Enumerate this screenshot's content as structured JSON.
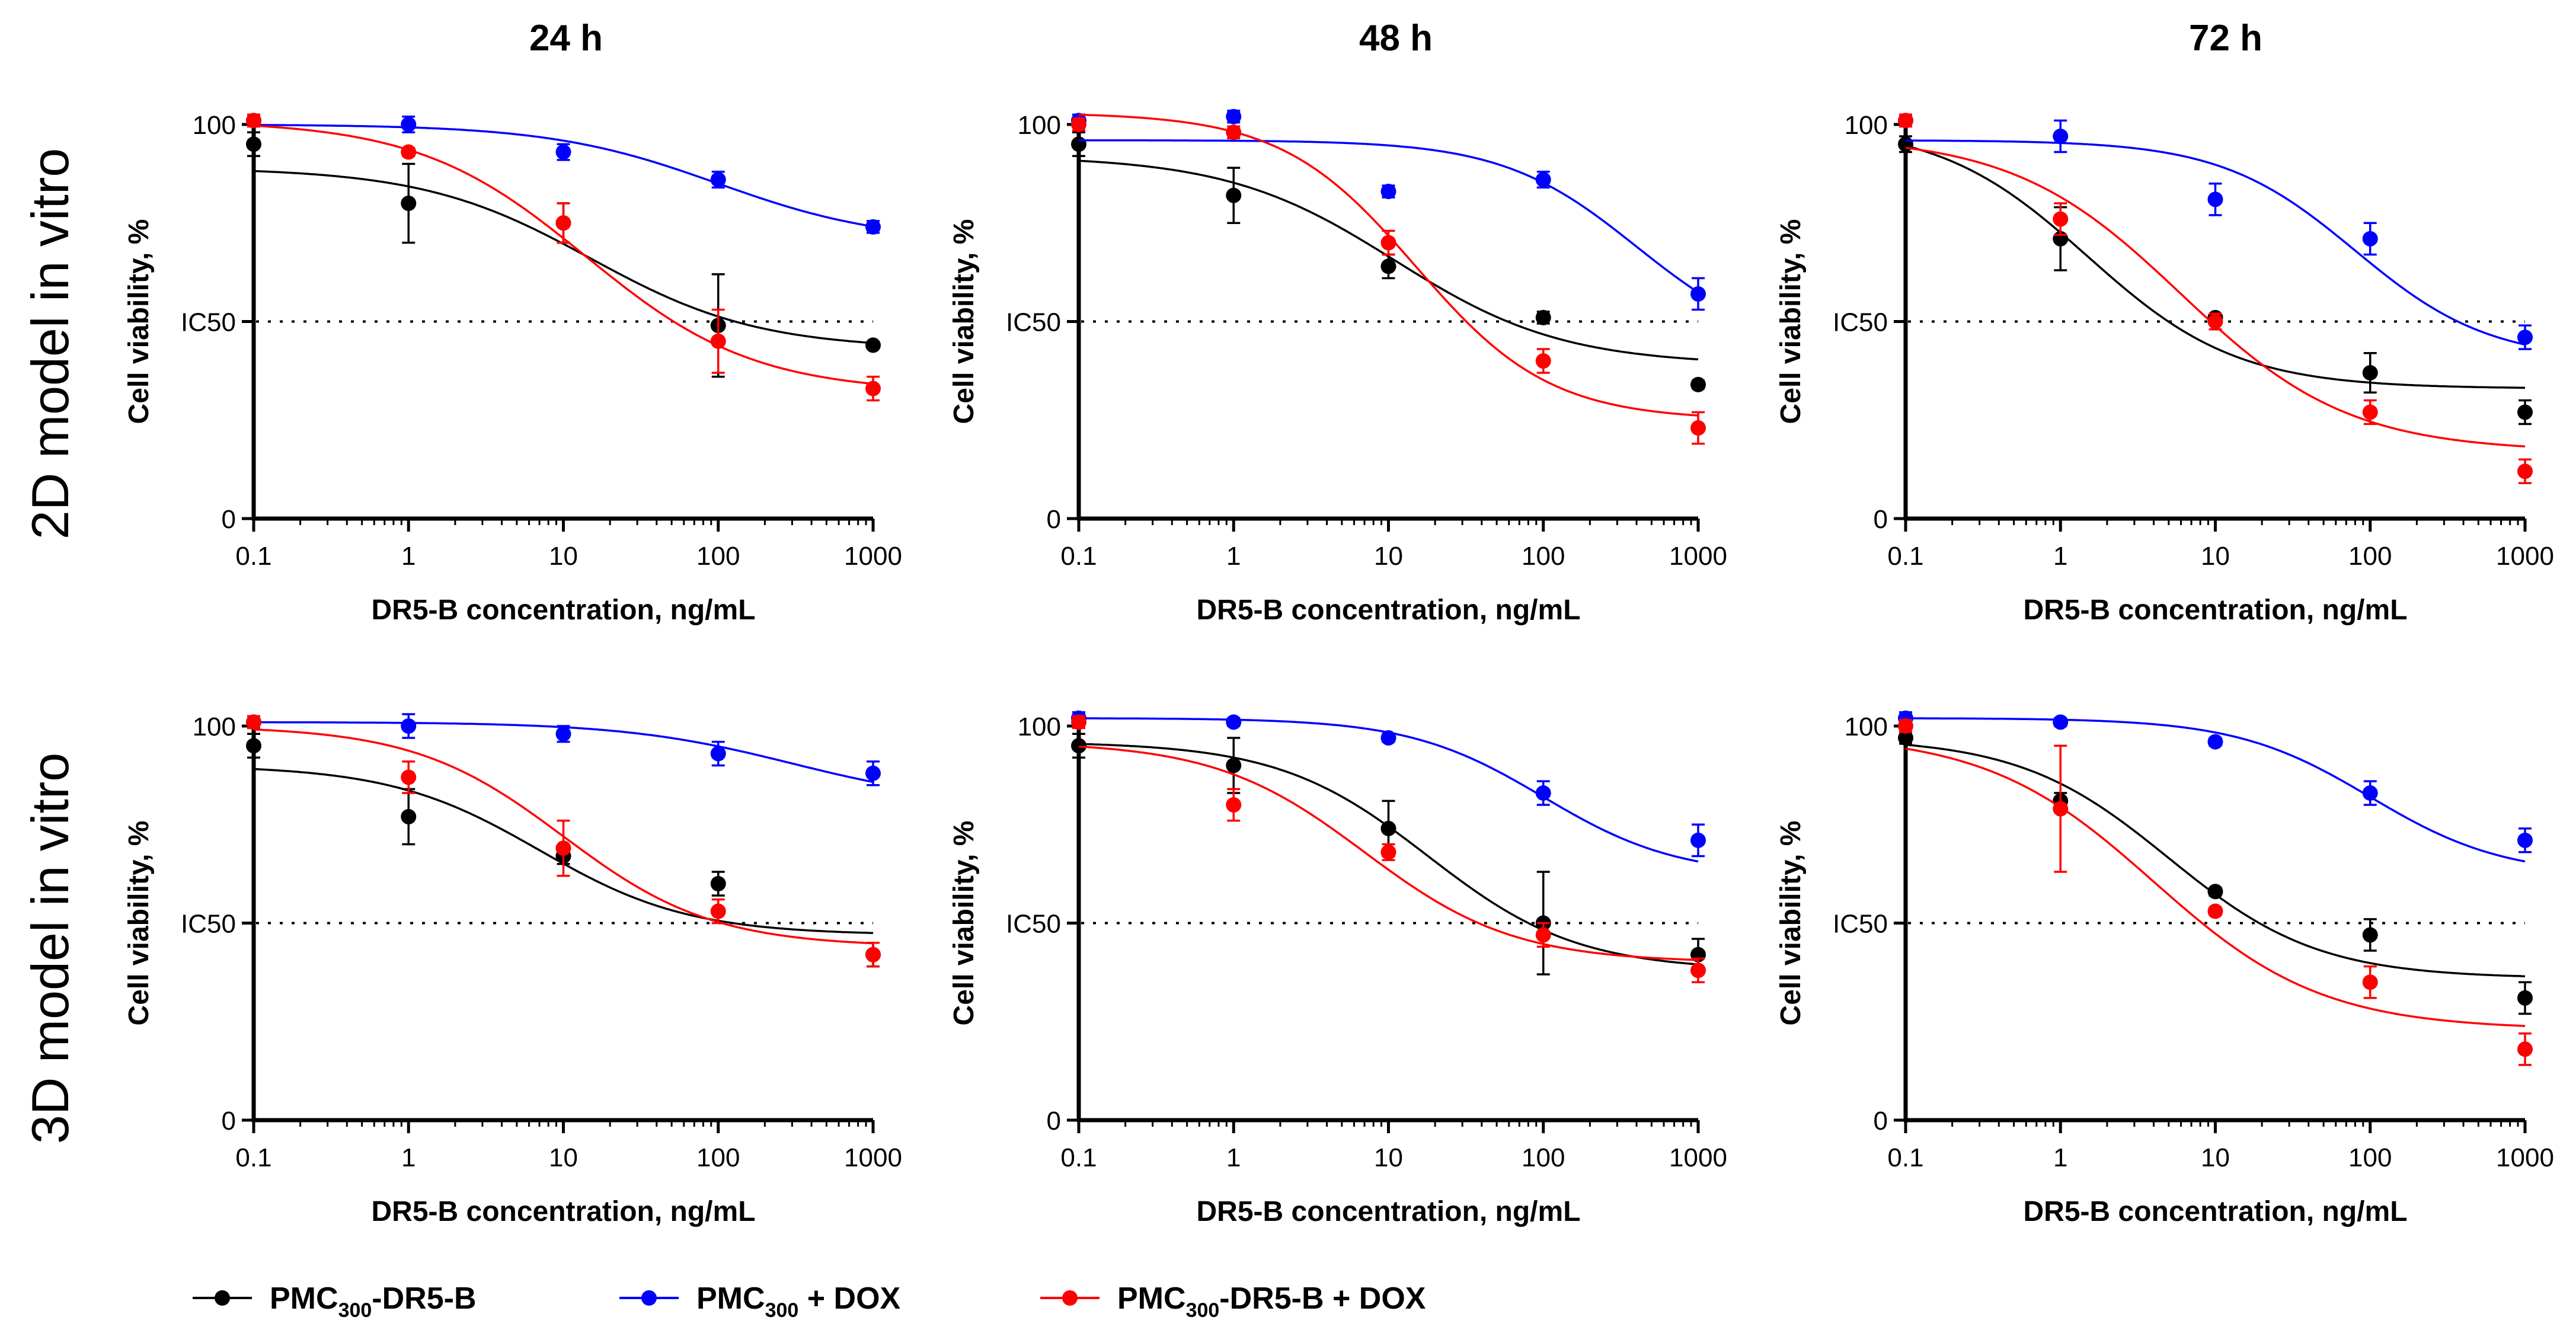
{
  "figure": {
    "column_titles": [
      "24 h",
      "48 h",
      "72 h"
    ],
    "row_titles": [
      "2D model in vitro",
      "3D model in vitro"
    ],
    "legend": [
      {
        "name": "PMC300-DR5-B",
        "pre": "PMC",
        "sub": "300",
        "post": "-DR5-B",
        "color": "#000000"
      },
      {
        "name": "PMC300 + DOX",
        "pre": "PMC",
        "sub": "300",
        "post": " + DOX",
        "color": "#0000FF"
      },
      {
        "name": "PMC300-DR5-B + DOX",
        "pre": "PMC",
        "sub": "300",
        "post": "-DR5-B + DOX",
        "color": "#FF0000"
      }
    ],
    "colors": {
      "black": "#000000",
      "blue": "#0000FF",
      "red": "#FF0000"
    }
  },
  "chart_data": [
    {
      "type": "scatter",
      "panel": "2D model in vitro, 24 h",
      "title": "24 h",
      "row": "2D model in vitro",
      "xlabel": "DR5-B concentration, ng/mL",
      "ylabel": "Cell viability, %",
      "xscale": "log",
      "xlim": [
        0.1,
        1000
      ],
      "ylim": [
        0,
        100
      ],
      "x": [
        0.1,
        1,
        10,
        100,
        1000
      ],
      "xticks": [
        "0.1",
        "1",
        "10",
        "100",
        "1000"
      ],
      "yticks": [
        {
          "value": 0,
          "label": "0"
        },
        {
          "value": 50,
          "label": "IC50"
        },
        {
          "value": 100,
          "label": "100"
        }
      ],
      "ic50_line": 50,
      "series": [
        {
          "name": "PMC300-DR5-B",
          "color": "#000000",
          "values": [
            95,
            80,
            75,
            49,
            44
          ],
          "errors": [
            3,
            10,
            5,
            13,
            0.5
          ],
          "fit": {
            "top": 89,
            "bottom": 43,
            "ec50": 15,
            "hill": 0.8
          }
        },
        {
          "name": "PMC300 + DOX",
          "color": "#0000FF",
          "values": [
            101,
            100,
            93,
            86,
            74
          ],
          "errors": [
            1.5,
            2,
            2,
            2,
            1.5
          ],
          "fit": {
            "top": 100,
            "bottom": 70,
            "ec50": 100,
            "hill": 0.8
          }
        },
        {
          "name": "PMC300-DR5-B + DOX",
          "color": "#FF0000",
          "values": [
            101,
            93,
            75,
            45,
            33
          ],
          "errors": [
            1.5,
            1,
            5,
            8,
            3
          ],
          "fit": {
            "top": 101,
            "bottom": 32,
            "ec50": 14,
            "hill": 0.8
          }
        }
      ]
    },
    {
      "type": "scatter",
      "panel": "2D model in vitro, 48 h",
      "title": "48 h",
      "row": "2D model in vitro",
      "xlabel": "DR5-B concentration, ng/mL",
      "ylabel": "Cell viability, %",
      "xscale": "log",
      "xlim": [
        0.1,
        1000
      ],
      "ylim": [
        0,
        100
      ],
      "x": [
        0.1,
        1,
        10,
        100,
        1000
      ],
      "xticks": [
        "0.1",
        "1",
        "10",
        "100",
        "1000"
      ],
      "yticks": [
        {
          "value": 0,
          "label": "0"
        },
        {
          "value": 50,
          "label": "IC50"
        },
        {
          "value": 100,
          "label": "100"
        }
      ],
      "ic50_line": 50,
      "series": [
        {
          "name": "PMC300-DR5-B",
          "color": "#000000",
          "values": [
            95,
            82,
            64,
            51,
            34
          ],
          "errors": [
            3,
            7,
            3,
            1.5,
            1
          ],
          "fit": {
            "top": 92,
            "bottom": 39,
            "ec50": 11,
            "hill": 0.8
          }
        },
        {
          "name": "PMC300 + DOX",
          "color": "#0000FF",
          "values": [
            101,
            102,
            83,
            86,
            57
          ],
          "errors": [
            1.5,
            1.5,
            1.5,
            2,
            4
          ],
          "fit": {
            "top": 96,
            "bottom": 42,
            "ec50": 400,
            "hill": 1.0
          }
        },
        {
          "name": "PMC300-DR5-B + DOX",
          "color": "#FF0000",
          "values": [
            100,
            98,
            70,
            40,
            23
          ],
          "errors": [
            1.5,
            1.5,
            3,
            3,
            4
          ],
          "fit": {
            "top": 103,
            "bottom": 25,
            "ec50": 15,
            "hill": 1.0
          }
        }
      ]
    },
    {
      "type": "scatter",
      "panel": "2D model in vitro, 72 h",
      "title": "72 h",
      "row": "2D model in vitro",
      "xlabel": "DR5-B concentration, ng/mL",
      "ylabel": "Cell viability, %",
      "xscale": "log",
      "xlim": [
        0.1,
        1000
      ],
      "ylim": [
        0,
        100
      ],
      "x": [
        0.1,
        1,
        10,
        100,
        1000
      ],
      "xticks": [
        "0.1",
        "1",
        "10",
        "100",
        "1000"
      ],
      "yticks": [
        {
          "value": 0,
          "label": "0"
        },
        {
          "value": 50,
          "label": "IC50"
        },
        {
          "value": 100,
          "label": "100"
        }
      ],
      "ic50_line": 50,
      "series": [
        {
          "name": "PMC300-DR5-B",
          "color": "#000000",
          "values": [
            95,
            71,
            51,
            37,
            27
          ],
          "errors": [
            2,
            8,
            1,
            5,
            3
          ],
          "fit": {
            "top": 100,
            "bottom": 33,
            "ec50": 1.5,
            "hill": 0.9
          }
        },
        {
          "name": "PMC300 + DOX",
          "color": "#0000FF",
          "values": [
            101,
            97,
            81,
            71,
            46
          ],
          "errors": [
            1.5,
            4,
            4,
            4,
            3
          ],
          "fit": {
            "top": 96,
            "bottom": 40,
            "ec50": 80,
            "hill": 1.0
          }
        },
        {
          "name": "PMC300-DR5-B + DOX",
          "color": "#FF0000",
          "values": [
            101,
            76,
            50,
            27,
            12
          ],
          "errors": [
            1.5,
            4,
            2,
            3,
            3
          ],
          "fit": {
            "top": 97,
            "bottom": 17,
            "ec50": 6,
            "hill": 0.8
          }
        }
      ]
    },
    {
      "type": "scatter",
      "panel": "3D model in vitro, 24 h",
      "title": "24 h",
      "row": "3D model in vitro",
      "xlabel": "DR5-B concentration, ng/mL",
      "ylabel": "Cell viability, %",
      "xscale": "log",
      "xlim": [
        0.1,
        1000
      ],
      "ylim": [
        0,
        100
      ],
      "x": [
        0.1,
        1,
        10,
        100,
        1000
      ],
      "xticks": [
        "0.1",
        "1",
        "10",
        "100",
        "1000"
      ],
      "yticks": [
        {
          "value": 0,
          "label": "0"
        },
        {
          "value": 50,
          "label": "IC50"
        },
        {
          "value": 100,
          "label": "100"
        }
      ],
      "ic50_line": 50,
      "series": [
        {
          "name": "PMC300-DR5-B",
          "color": "#000000",
          "values": [
            95,
            77,
            67,
            60,
            42
          ],
          "errors": [
            3,
            7,
            2,
            3,
            3
          ],
          "fit": {
            "top": 90,
            "bottom": 47,
            "ec50": 7,
            "hill": 0.9
          }
        },
        {
          "name": "PMC300 + DOX",
          "color": "#0000FF",
          "values": [
            101,
            100,
            98,
            93,
            88
          ],
          "errors": [
            1.5,
            3,
            2,
            3,
            3
          ],
          "fit": {
            "top": 101,
            "bottom": 80,
            "ec50": 300,
            "hill": 0.8
          }
        },
        {
          "name": "PMC300-DR5-B + DOX",
          "color": "#FF0000",
          "values": [
            101,
            87,
            69,
            53,
            42
          ],
          "errors": [
            1.5,
            4,
            7,
            3,
            3
          ],
          "fit": {
            "top": 100,
            "bottom": 44,
            "ec50": 10,
            "hill": 0.9
          }
        }
      ]
    },
    {
      "type": "scatter",
      "panel": "3D model in vitro, 48 h",
      "title": "48 h",
      "row": "3D model in vitro",
      "xlabel": "DR5-B concentration, ng/mL",
      "ylabel": "Cell viability, %",
      "xscale": "log",
      "xlim": [
        0.1,
        1000
      ],
      "ylim": [
        0,
        100
      ],
      "x": [
        0.1,
        1,
        10,
        100,
        1000
      ],
      "xticks": [
        "0.1",
        "1",
        "10",
        "100",
        "1000"
      ],
      "yticks": [
        {
          "value": 0,
          "label": "0"
        },
        {
          "value": 50,
          "label": "IC50"
        },
        {
          "value": 100,
          "label": "100"
        }
      ],
      "ic50_line": 50,
      "series": [
        {
          "name": "PMC300-DR5-B",
          "color": "#000000",
          "values": [
            95,
            90,
            74,
            50,
            42
          ],
          "errors": [
            3,
            7,
            7,
            13,
            4
          ],
          "fit": {
            "top": 96,
            "bottom": 38,
            "ec50": 18,
            "hill": 0.9
          }
        },
        {
          "name": "PMC300 + DOX",
          "color": "#0000FF",
          "values": [
            102,
            101,
            97,
            83,
            71
          ],
          "errors": [
            1.5,
            1,
            1,
            3,
            4
          ],
          "fit": {
            "top": 102,
            "bottom": 62,
            "ec50": 100,
            "hill": 1.0
          }
        },
        {
          "name": "PMC300-DR5-B + DOX",
          "color": "#FF0000",
          "values": [
            101,
            80,
            68,
            47,
            38
          ],
          "errors": [
            1.5,
            4,
            2,
            3,
            3
          ],
          "fit": {
            "top": 96,
            "bottom": 40,
            "ec50": 7,
            "hill": 0.9
          }
        }
      ]
    },
    {
      "type": "scatter",
      "panel": "3D model in vitro, 72 h",
      "title": "72 h",
      "row": "3D model in vitro",
      "xlabel": "DR5-B concentration, ng/mL",
      "ylabel": "Cell viability, %",
      "xscale": "log",
      "xlim": [
        0.1,
        1000
      ],
      "ylim": [
        0,
        100
      ],
      "x": [
        0.1,
        1,
        10,
        100,
        1000
      ],
      "xticks": [
        "0.1",
        "1",
        "10",
        "100",
        "1000"
      ],
      "yticks": [
        {
          "value": 0,
          "label": "0"
        },
        {
          "value": 50,
          "label": "IC50"
        },
        {
          "value": 100,
          "label": "100"
        }
      ],
      "ic50_line": 50,
      "series": [
        {
          "name": "PMC300-DR5-B",
          "color": "#000000",
          "values": [
            97,
            81,
            58,
            47,
            31
          ],
          "errors": [
            1.5,
            2,
            1,
            4,
            4
          ],
          "fit": {
            "top": 97,
            "bottom": 36,
            "ec50": 5,
            "hill": 0.9
          }
        },
        {
          "name": "PMC300 + DOX",
          "color": "#0000FF",
          "values": [
            102,
            101,
            96,
            83,
            71
          ],
          "errors": [
            1.5,
            1,
            1,
            3,
            3
          ],
          "fit": {
            "top": 102,
            "bottom": 62,
            "ec50": 100,
            "hill": 1.0
          }
        },
        {
          "name": "PMC300-DR5-B + DOX",
          "color": "#FF0000",
          "values": [
            100,
            79,
            53,
            35,
            18
          ],
          "errors": [
            1.5,
            16,
            1,
            4,
            4
          ],
          "fit": {
            "top": 98,
            "bottom": 23,
            "ec50": 4,
            "hill": 0.8
          }
        }
      ]
    }
  ]
}
